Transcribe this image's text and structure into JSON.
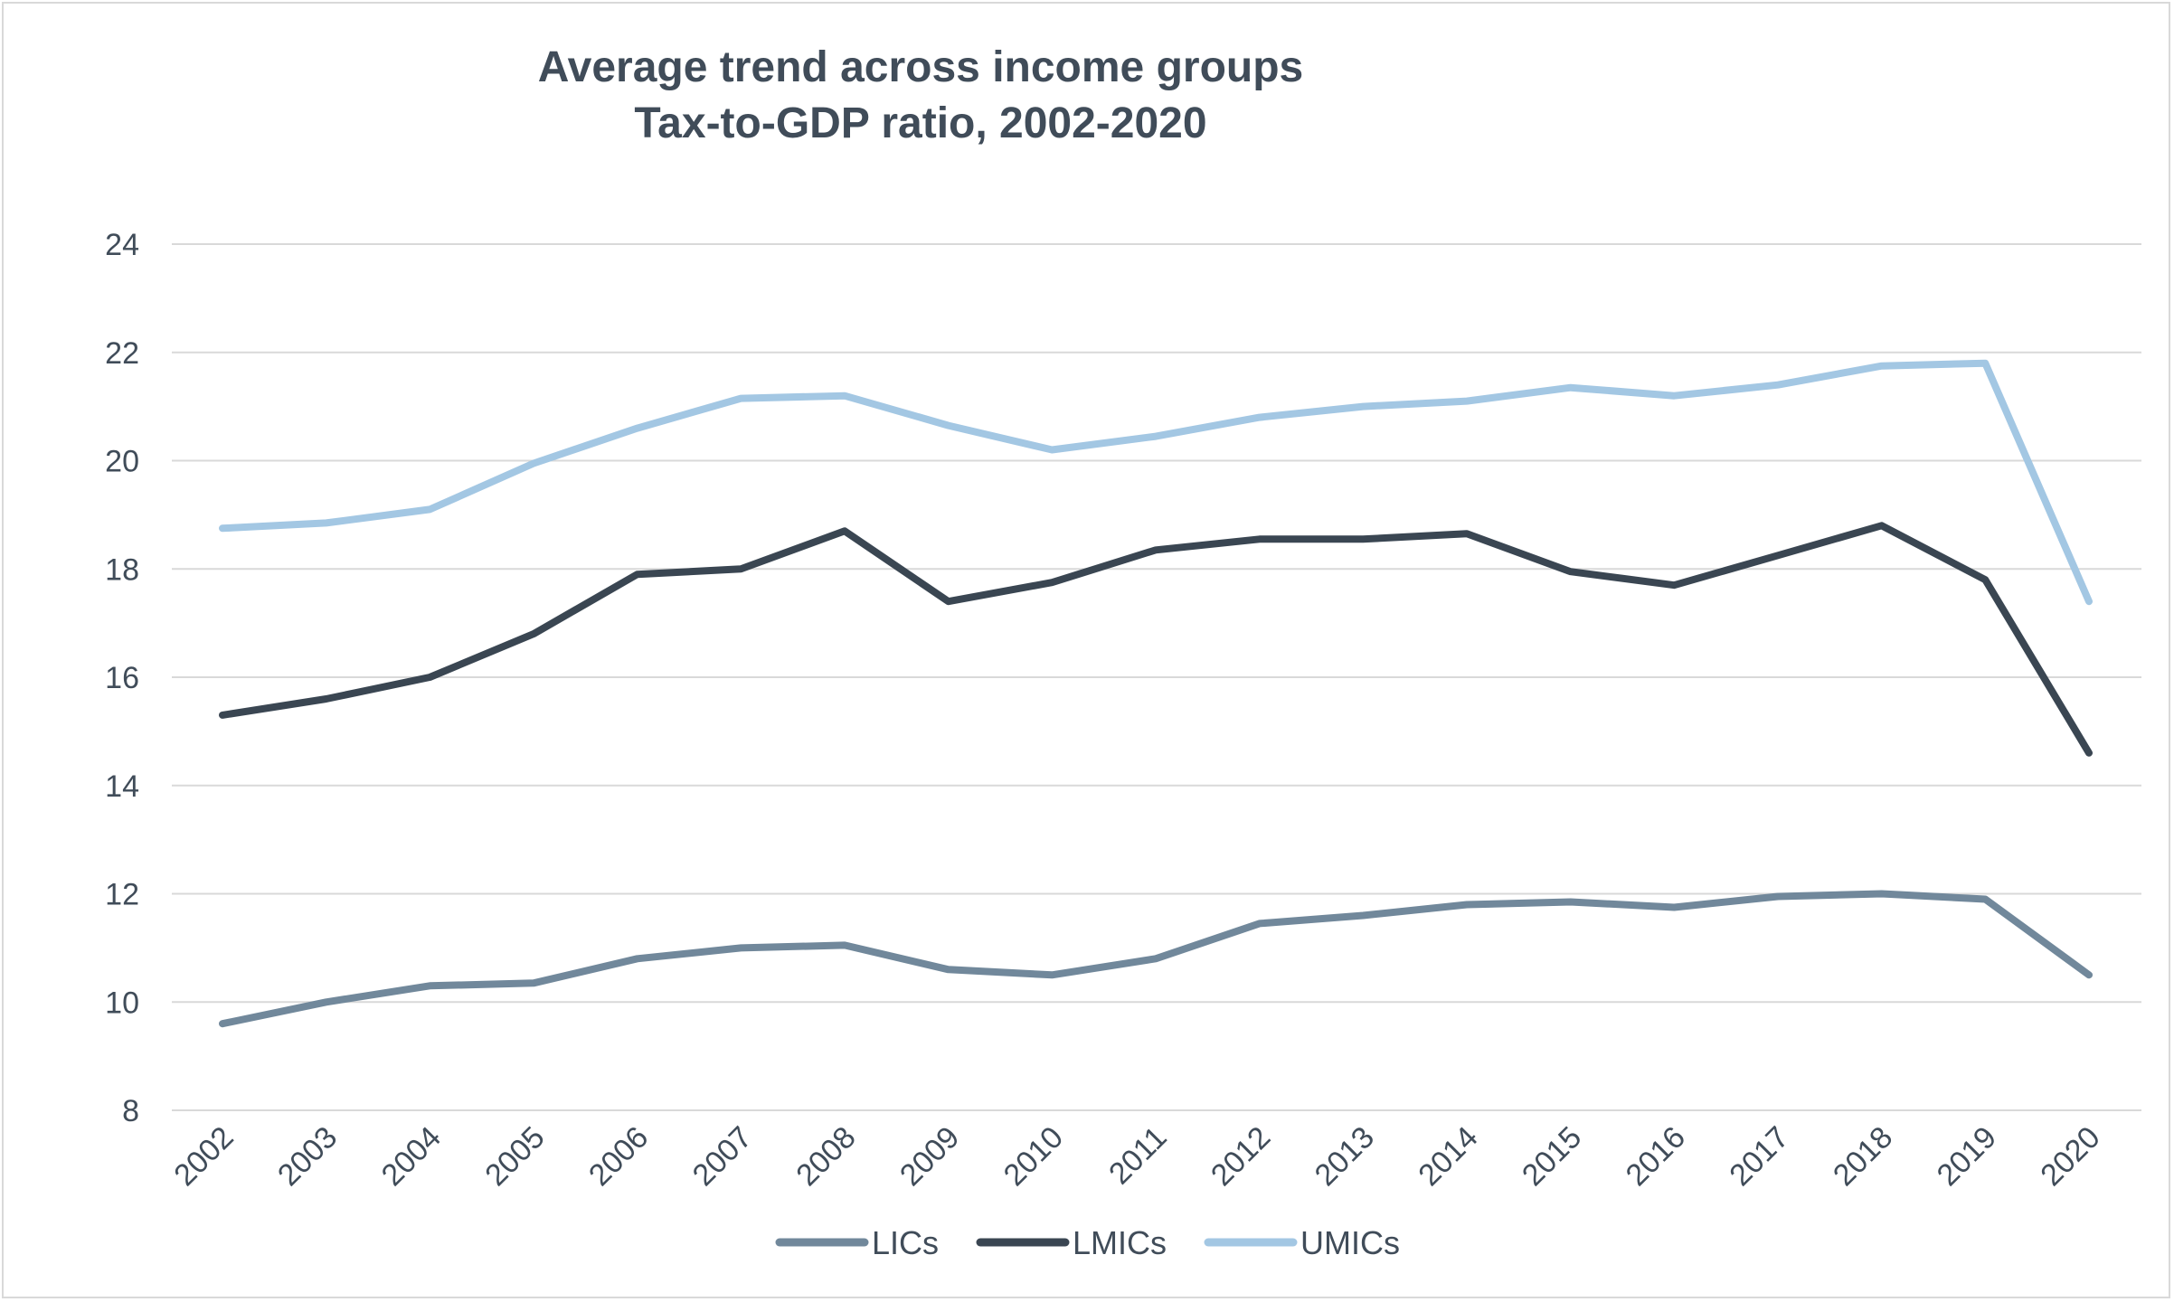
{
  "chart_data": {
    "type": "line",
    "title": "Average trend across income groups",
    "subtitle": "Tax-to-GDP ratio, 2002-2020",
    "xlabel": "",
    "ylabel": "",
    "ylim": [
      8,
      24
    ],
    "yticks": [
      "8",
      "10",
      "12",
      "14",
      "16",
      "18",
      "20",
      "22",
      "24"
    ],
    "yticks_values": [
      8,
      10,
      12,
      14,
      16,
      18,
      20,
      22,
      24
    ],
    "grid": true,
    "legend_position": "bottom",
    "categories": [
      "2002",
      "2003",
      "2004",
      "2005",
      "2006",
      "2007",
      "2008",
      "2009",
      "2010",
      "2011",
      "2012",
      "2013",
      "2014",
      "2015",
      "2016",
      "2017",
      "2018",
      "2019",
      "2020"
    ],
    "series": [
      {
        "name": "LICs",
        "color": "#71889b",
        "values": [
          9.6,
          10.0,
          10.3,
          10.35,
          10.8,
          11.0,
          11.05,
          10.6,
          10.5,
          10.8,
          11.45,
          11.6,
          11.8,
          11.85,
          11.75,
          11.95,
          12.0,
          11.9,
          10.5
        ]
      },
      {
        "name": "LMICs",
        "color": "#3a4652",
        "values": [
          15.3,
          15.6,
          16.0,
          16.8,
          17.9,
          18.0,
          18.7,
          17.4,
          17.75,
          18.35,
          18.55,
          18.55,
          18.65,
          17.95,
          17.7,
          18.25,
          18.8,
          17.8,
          14.6
        ]
      },
      {
        "name": "UMICs",
        "color": "#a3c7e3",
        "values": [
          18.75,
          18.85,
          19.1,
          19.95,
          20.6,
          21.15,
          21.2,
          20.65,
          20.2,
          20.45,
          20.8,
          21.0,
          21.1,
          21.35,
          21.2,
          21.4,
          21.75,
          21.8,
          17.4
        ]
      }
    ]
  }
}
